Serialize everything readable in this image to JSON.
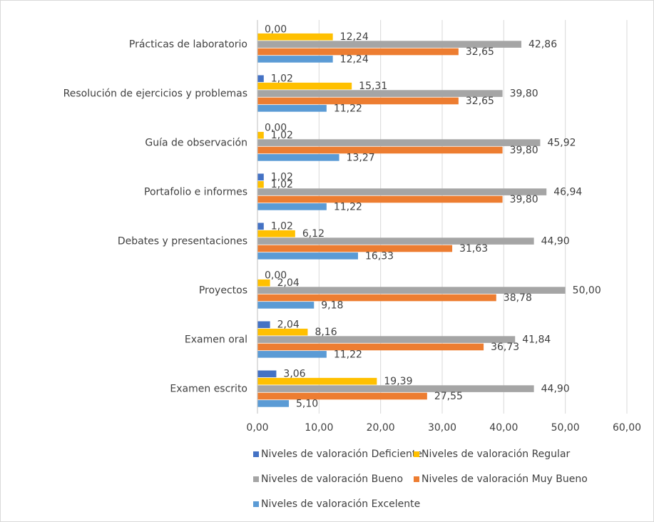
{
  "chart_data": {
    "type": "hbar",
    "categories": [
      "Prácticas de laboratorio",
      "Resolución de ejercicios y problemas",
      "Guía de observación",
      "Portafolio e informes",
      "Debates y presentaciones",
      "Proyectos",
      "Examen oral",
      "Examen escrito"
    ],
    "series": [
      {
        "name": "Niveles de valoración Deficiente",
        "color": "#4472c4",
        "values": [
          0,
          1.02,
          0,
          1.02,
          1.02,
          0,
          2.04,
          3.06
        ],
        "value_labels": [
          "0,00",
          "1,02",
          "0,00",
          "1,02",
          "1,02",
          "0,00",
          "2,04",
          "3,06"
        ]
      },
      {
        "name": "Niveles de valoración Regular",
        "color": "#ffc000",
        "values": [
          12.24,
          15.31,
          1.02,
          1.02,
          6.12,
          2.04,
          8.16,
          19.39
        ],
        "value_labels": [
          "12,24",
          "15,31",
          "1,02",
          "1,02",
          "6,12",
          "2,04",
          "8,16",
          "19,39"
        ]
      },
      {
        "name": "Niveles de valoración Bueno",
        "color": "#a5a5a5",
        "values": [
          42.86,
          39.8,
          45.92,
          46.94,
          44.9,
          50,
          41.84,
          44.9
        ],
        "value_labels": [
          "42,86",
          "39,80",
          "45,92",
          "46,94",
          "44,90",
          "50,00",
          "41,84",
          "44,90"
        ]
      },
      {
        "name": "Niveles de valoración Muy Bueno",
        "color": "#ed7d31",
        "values": [
          32.65,
          32.65,
          39.8,
          39.8,
          31.63,
          38.78,
          36.73,
          27.55
        ],
        "value_labels": [
          "32,65",
          "32,65",
          "39,80",
          "39,80",
          "31,63",
          "38,78",
          "36,73",
          "27,55"
        ]
      },
      {
        "name": "Niveles de valoración Excelente",
        "color": "#5b9bd5",
        "values": [
          12.24,
          11.22,
          13.27,
          11.22,
          16.33,
          9.18,
          11.22,
          5.1
        ],
        "value_labels": [
          "12,24",
          "11,22",
          "13,27",
          "11,22",
          "16,33",
          "9,18",
          "11,22",
          "5,10"
        ]
      }
    ],
    "xlim": [
      0,
      60
    ],
    "xticks": [
      {
        "value": 0,
        "label": "0,00"
      },
      {
        "value": 10,
        "label": "10,00"
      },
      {
        "value": 20,
        "label": "20,00"
      },
      {
        "value": 30,
        "label": "30,00"
      },
      {
        "value": 40,
        "label": "40,00"
      },
      {
        "value": 50,
        "label": "50,00"
      },
      {
        "value": 60,
        "label": "60,00"
      }
    ],
    "grid": true,
    "legend": "bottom"
  }
}
